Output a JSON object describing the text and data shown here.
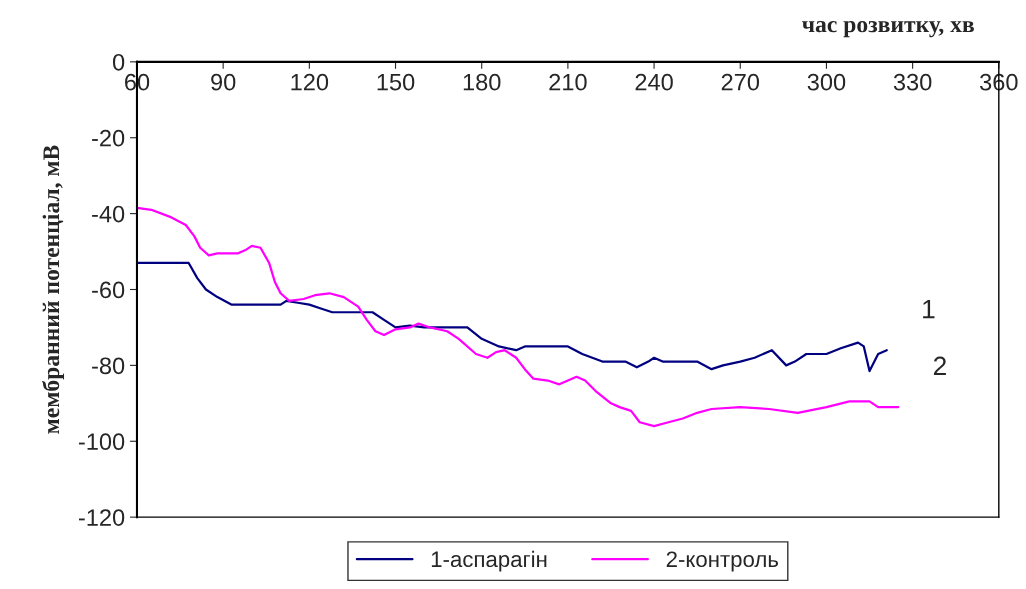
{
  "chart_data": {
    "type": "line",
    "xlabel": "час розвитку, хв",
    "ylabel": "мембранний потенціал, мВ",
    "xlim": [
      60,
      360
    ],
    "xticks": [
      60,
      90,
      120,
      150,
      180,
      210,
      240,
      270,
      300,
      330,
      360
    ],
    "ylim": [
      -120,
      0
    ],
    "yticks": [
      -120,
      -100,
      -80,
      -60,
      -40,
      -20,
      0
    ],
    "grid": false,
    "legend": "bottom",
    "marker": "none",
    "line_style": "solid",
    "annotations": [
      "1",
      "2"
    ],
    "series": [
      {
        "name": "1-аспарагін",
        "color": "#000080",
        "x": [
          60,
          78,
          81,
          84,
          88,
          93,
          110,
          112,
          116,
          120,
          124,
          128,
          142,
          146,
          150,
          155,
          160,
          165,
          175,
          180,
          186,
          192,
          195,
          210,
          215,
          222,
          230,
          234,
          238,
          240,
          243,
          255,
          260,
          264,
          270,
          275,
          281,
          286,
          289,
          293,
          300,
          305,
          311,
          313,
          315,
          318,
          321
        ],
        "values": [
          -53,
          -53,
          -57,
          -60,
          -62,
          -64,
          -64,
          -63,
          -63.5,
          -64,
          -65,
          -66,
          -66,
          -68,
          -70,
          -69.5,
          -70,
          -70,
          -70,
          -73,
          -75,
          -76,
          -75,
          -75,
          -77,
          -79,
          -79,
          -80.5,
          -79,
          -78,
          -79,
          -79,
          -81,
          -80,
          -79,
          -78,
          -76,
          -80,
          -79,
          -77,
          -77,
          -75.5,
          -74,
          -75,
          -81.5,
          -77,
          -76
        ]
      },
      {
        "name": "2-контроль",
        "color": "#ff00ff",
        "x": [
          60,
          65,
          72,
          77,
          80,
          82,
          85,
          88,
          95,
          98,
          100,
          103,
          106,
          108,
          110,
          113,
          118,
          122,
          127,
          132,
          137,
          140,
          143,
          146,
          150,
          155,
          158,
          162,
          168,
          172,
          178,
          182,
          185,
          188,
          192,
          195,
          198,
          203,
          207,
          210,
          213,
          216,
          220,
          225,
          228,
          232,
          235,
          240,
          245,
          250,
          255,
          260,
          270,
          280,
          290,
          300,
          308,
          315,
          318,
          322,
          325
        ],
        "values": [
          -38.5,
          -39,
          -41,
          -43,
          -46,
          -49,
          -51,
          -50.5,
          -50.5,
          -49.5,
          -48.5,
          -49,
          -53,
          -58,
          -61,
          -63,
          -62.5,
          -61.5,
          -61,
          -62,
          -64.5,
          -68,
          -71,
          -72,
          -70.5,
          -70,
          -69,
          -70,
          -71,
          -73,
          -77,
          -78,
          -76.5,
          -76,
          -78,
          -81,
          -83.5,
          -84,
          -85,
          -84,
          -83,
          -84,
          -87,
          -90,
          -91,
          -92,
          -95,
          -96,
          -95,
          -94,
          -92.5,
          -91.5,
          -91,
          -91.5,
          -92.5,
          -91,
          -89.5,
          -89.5,
          -91,
          -91,
          -91
        ]
      }
    ]
  }
}
